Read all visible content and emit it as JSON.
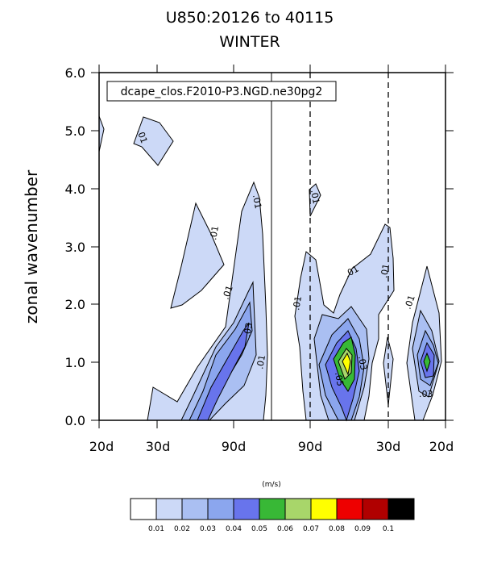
{
  "chart_data": {
    "type": "contour",
    "title_line1": "U850:20126 to 40115",
    "title_line2": "WINTER",
    "ylabel": "zonal wavenumber",
    "ylim": [
      0.0,
      6.0
    ],
    "y_ticks": [
      "0.0",
      "1.0",
      "2.0",
      "3.0",
      "4.0",
      "5.0",
      "6.0"
    ],
    "x_ticks": [
      "20d",
      "30d",
      "90d",
      "90d",
      "30d",
      "20d"
    ],
    "info_label": "dcape_clos.F2010-P3.NGD.ne30pg2",
    "units": "(m/s)",
    "contour_labels": [
      ".01",
      ".01",
      ".01",
      ".01",
      ".03",
      ".01",
      ".01",
      ".01",
      ".01",
      ".01",
      ".05",
      ".03",
      ".01",
      ".03"
    ],
    "colorbar": {
      "labels": [
        "0.01",
        "0.02",
        "0.03",
        "0.04",
        "0.05",
        "0.06",
        "0.07",
        "0.08",
        "0.09",
        "0.1"
      ],
      "colors": [
        "#ffffff",
        "#ccd9f7",
        "#aabff2",
        "#8ba6ee",
        "#6874ec",
        "#38b836",
        "#a8d66a",
        "#ffff00",
        "#ee0000",
        "#b00000",
        "#000000"
      ]
    }
  }
}
